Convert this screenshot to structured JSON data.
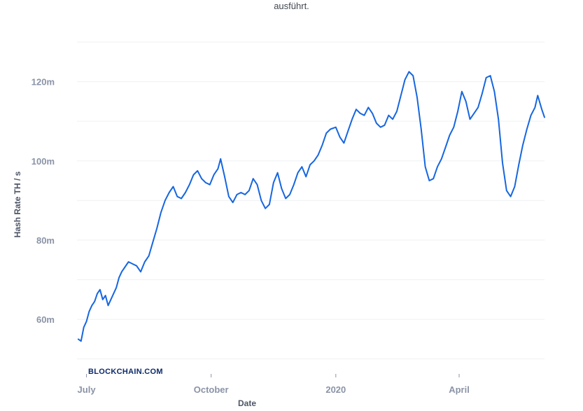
{
  "caption": "ausführt.",
  "watermark": "BLOCKCHAIN.COM",
  "chart_data": {
    "type": "line",
    "title": "",
    "xlabel": "Date",
    "ylabel": "Hash Rate TH / s",
    "ylim": [
      48000000,
      130000000
    ],
    "yticks": [
      {
        "value": 60000000,
        "label": "60m"
      },
      {
        "value": 80000000,
        "label": "80m"
      },
      {
        "value": 100000000,
        "label": "100m"
      },
      {
        "value": 120000000,
        "label": "120m"
      }
    ],
    "xrange": [
      "2019-06-24",
      "2020-06-03"
    ],
    "xticks": [
      {
        "date": "2019-07-01",
        "label": "July"
      },
      {
        "date": "2019-10-01",
        "label": "October"
      },
      {
        "date": "2020-01-01",
        "label": "2020"
      },
      {
        "date": "2020-04-01",
        "label": "April"
      }
    ],
    "grid": true,
    "series": [
      {
        "color": "#1666e0",
        "points": [
          [
            "2019-06-25",
            55000000
          ],
          [
            "2019-06-27",
            54500000
          ],
          [
            "2019-06-29",
            58000000
          ],
          [
            "2019-07-01",
            59500000
          ],
          [
            "2019-07-03",
            62000000
          ],
          [
            "2019-07-05",
            63500000
          ],
          [
            "2019-07-07",
            64500000
          ],
          [
            "2019-07-09",
            66500000
          ],
          [
            "2019-07-11",
            67500000
          ],
          [
            "2019-07-13",
            65000000
          ],
          [
            "2019-07-15",
            66000000
          ],
          [
            "2019-07-17",
            63500000
          ],
          [
            "2019-07-19",
            65000000
          ],
          [
            "2019-07-21",
            66500000
          ],
          [
            "2019-07-23",
            68000000
          ],
          [
            "2019-07-25",
            70500000
          ],
          [
            "2019-07-27",
            72000000
          ],
          [
            "2019-07-29",
            73000000
          ],
          [
            "2019-08-01",
            74500000
          ],
          [
            "2019-08-04",
            74000000
          ],
          [
            "2019-08-07",
            73500000
          ],
          [
            "2019-08-10",
            72000000
          ],
          [
            "2019-08-13",
            74500000
          ],
          [
            "2019-08-16",
            76000000
          ],
          [
            "2019-08-19",
            79500000
          ],
          [
            "2019-08-22",
            83000000
          ],
          [
            "2019-08-25",
            87000000
          ],
          [
            "2019-08-28",
            90000000
          ],
          [
            "2019-08-31",
            92000000
          ],
          [
            "2019-09-03",
            93500000
          ],
          [
            "2019-09-06",
            91000000
          ],
          [
            "2019-09-09",
            90500000
          ],
          [
            "2019-09-12",
            92000000
          ],
          [
            "2019-09-15",
            94000000
          ],
          [
            "2019-09-18",
            96500000
          ],
          [
            "2019-09-21",
            97500000
          ],
          [
            "2019-09-24",
            95500000
          ],
          [
            "2019-09-27",
            94500000
          ],
          [
            "2019-09-30",
            94000000
          ],
          [
            "2019-10-03",
            96500000
          ],
          [
            "2019-10-06",
            98000000
          ],
          [
            "2019-10-08",
            100500000
          ],
          [
            "2019-10-11",
            96000000
          ],
          [
            "2019-10-14",
            91000000
          ],
          [
            "2019-10-17",
            89500000
          ],
          [
            "2019-10-20",
            91500000
          ],
          [
            "2019-10-23",
            92000000
          ],
          [
            "2019-10-26",
            91500000
          ],
          [
            "2019-10-29",
            92500000
          ],
          [
            "2019-11-01",
            95500000
          ],
          [
            "2019-11-04",
            94000000
          ],
          [
            "2019-11-07",
            90000000
          ],
          [
            "2019-11-10",
            88000000
          ],
          [
            "2019-11-13",
            89000000
          ],
          [
            "2019-11-16",
            94500000
          ],
          [
            "2019-11-19",
            97000000
          ],
          [
            "2019-11-22",
            93000000
          ],
          [
            "2019-11-25",
            90500000
          ],
          [
            "2019-11-28",
            91500000
          ],
          [
            "2019-12-01",
            94000000
          ],
          [
            "2019-12-04",
            97000000
          ],
          [
            "2019-12-07",
            98500000
          ],
          [
            "2019-12-10",
            96000000
          ],
          [
            "2019-12-13",
            99000000
          ],
          [
            "2019-12-16",
            100000000
          ],
          [
            "2019-12-19",
            101500000
          ],
          [
            "2019-12-22",
            104000000
          ],
          [
            "2019-12-25",
            107000000
          ],
          [
            "2019-12-28",
            108000000
          ],
          [
            "2020-01-01",
            108500000
          ],
          [
            "2020-01-04",
            106000000
          ],
          [
            "2020-01-07",
            104500000
          ],
          [
            "2020-01-10",
            107500000
          ],
          [
            "2020-01-13",
            110500000
          ],
          [
            "2020-01-16",
            113000000
          ],
          [
            "2020-01-19",
            112000000
          ],
          [
            "2020-01-22",
            111500000
          ],
          [
            "2020-01-25",
            113500000
          ],
          [
            "2020-01-28",
            112000000
          ],
          [
            "2020-01-31",
            109500000
          ],
          [
            "2020-02-03",
            108500000
          ],
          [
            "2020-02-06",
            109000000
          ],
          [
            "2020-02-09",
            111500000
          ],
          [
            "2020-02-12",
            110500000
          ],
          [
            "2020-02-15",
            112500000
          ],
          [
            "2020-02-18",
            116500000
          ],
          [
            "2020-02-21",
            120500000
          ],
          [
            "2020-02-24",
            122500000
          ],
          [
            "2020-02-27",
            121500000
          ],
          [
            "2020-03-01",
            116000000
          ],
          [
            "2020-03-04",
            108000000
          ],
          [
            "2020-03-07",
            98500000
          ],
          [
            "2020-03-10",
            95000000
          ],
          [
            "2020-03-13",
            95500000
          ],
          [
            "2020-03-16",
            98500000
          ],
          [
            "2020-03-19",
            100500000
          ],
          [
            "2020-03-22",
            103500000
          ],
          [
            "2020-03-25",
            106500000
          ],
          [
            "2020-03-28",
            108500000
          ],
          [
            "2020-03-31",
            112500000
          ],
          [
            "2020-04-03",
            117500000
          ],
          [
            "2020-04-06",
            115000000
          ],
          [
            "2020-04-09",
            110500000
          ],
          [
            "2020-04-12",
            112000000
          ],
          [
            "2020-04-15",
            113500000
          ],
          [
            "2020-04-18",
            117000000
          ],
          [
            "2020-04-21",
            121000000
          ],
          [
            "2020-04-24",
            121500000
          ],
          [
            "2020-04-27",
            117500000
          ],
          [
            "2020-04-30",
            110500000
          ],
          [
            "2020-05-03",
            99500000
          ],
          [
            "2020-05-06",
            92500000
          ],
          [
            "2020-05-09",
            91000000
          ],
          [
            "2020-05-12",
            93500000
          ],
          [
            "2020-05-15",
            99000000
          ],
          [
            "2020-05-18",
            104000000
          ],
          [
            "2020-05-21",
            108000000
          ],
          [
            "2020-05-24",
            111500000
          ],
          [
            "2020-05-27",
            113500000
          ],
          [
            "2020-05-29",
            116500000
          ],
          [
            "2020-06-01",
            113000000
          ],
          [
            "2020-06-03",
            111000000
          ]
        ]
      }
    ]
  }
}
